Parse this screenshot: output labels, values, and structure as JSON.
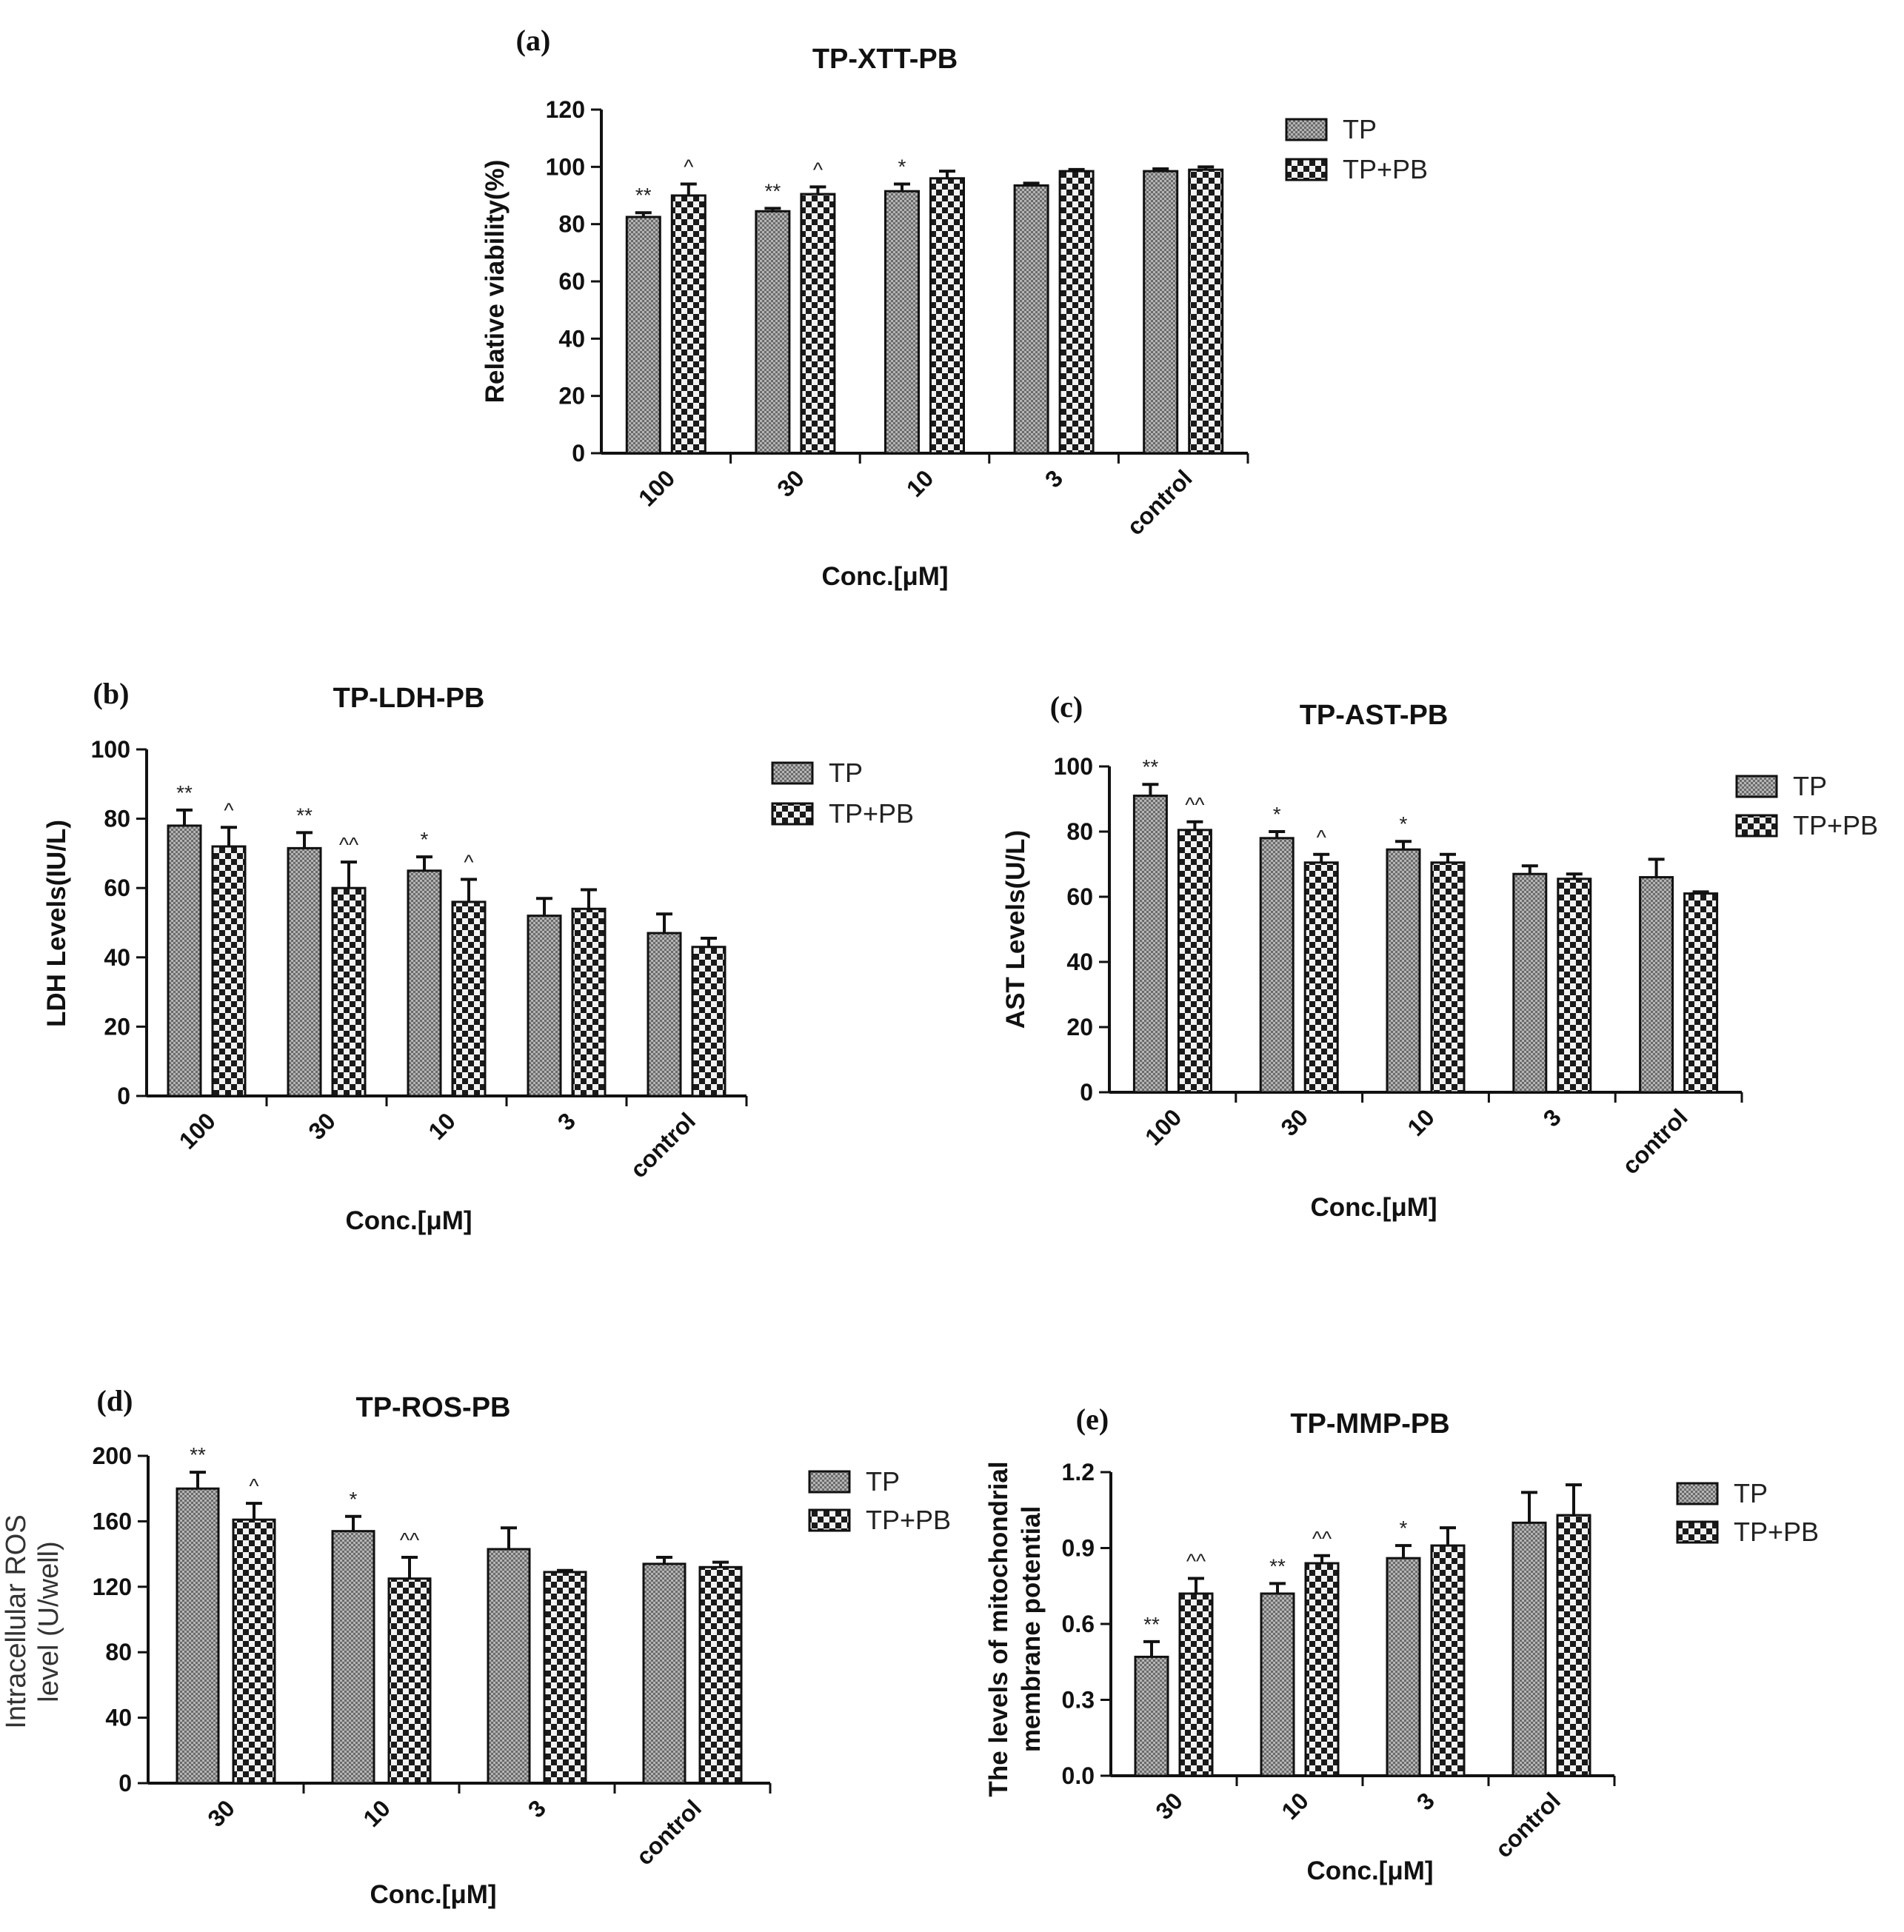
{
  "colors": {
    "ink": "#111111",
    "tp_fill": "#8a8a8a",
    "tppb_dark": "#1a1a1a",
    "tppb_light": "#f2f2f2"
  },
  "chart_data": [
    {
      "id": "a",
      "type": "bar",
      "panel_label": "(a)",
      "title": "TP-XTT-PB",
      "categories": [
        "100",
        "30",
        "10",
        "3",
        "control"
      ],
      "series": [
        {
          "name": "TP",
          "values": [
            82.5,
            84.5,
            91.5,
            93.5,
            98.5
          ],
          "errors": [
            1.5,
            1,
            2.5,
            0.8,
            0.8
          ],
          "annotations": [
            "**",
            "**",
            "*",
            "",
            ""
          ]
        },
        {
          "name": "TP+PB",
          "values": [
            90,
            90.5,
            96,
            98.5,
            99
          ],
          "errors": [
            4,
            2.5,
            2.5,
            0.6,
            1
          ],
          "annotations": [
            "^",
            "^",
            "",
            "",
            ""
          ]
        }
      ],
      "xlabel": "Conc.[μM]",
      "ylabel": "Relative viability(%)",
      "ylim": [
        0,
        120
      ],
      "yticks": [
        0,
        20,
        40,
        60,
        80,
        100,
        120
      ],
      "ytick_labels": [
        "0",
        "20",
        "40",
        "60",
        "80",
        "100",
        "120"
      ],
      "legend": "top-right"
    },
    {
      "id": "b",
      "type": "bar",
      "panel_label": "(b)",
      "title": "TP-LDH-PB",
      "categories": [
        "100",
        "30",
        "10",
        "3",
        "control"
      ],
      "series": [
        {
          "name": "TP",
          "values": [
            78,
            71.5,
            65,
            52,
            47
          ],
          "errors": [
            4.5,
            4.5,
            4,
            5,
            5.5
          ],
          "annotations": [
            "**",
            "**",
            "*",
            "",
            ""
          ]
        },
        {
          "name": "TP+PB",
          "values": [
            72,
            60,
            56,
            54,
            43
          ],
          "errors": [
            5.5,
            7.5,
            6.5,
            5.5,
            2.5
          ],
          "annotations": [
            "^",
            "^^",
            "^",
            "",
            ""
          ]
        }
      ],
      "xlabel": "Conc.[μM]",
      "ylabel": "LDH   Levels(IU/L)",
      "ylim": [
        0,
        100
      ],
      "yticks": [
        0,
        20,
        40,
        60,
        80,
        100
      ],
      "ytick_labels": [
        "0",
        "20",
        "40",
        "60",
        "80",
        "100"
      ],
      "legend": "top-right"
    },
    {
      "id": "c",
      "type": "bar",
      "panel_label": "(c)",
      "title": "TP-AST-PB",
      "categories": [
        "100",
        "30",
        "10",
        "3",
        "control"
      ],
      "series": [
        {
          "name": "TP",
          "values": [
            91,
            78,
            74.5,
            67,
            66
          ],
          "errors": [
            3.5,
            2,
            2.5,
            2.5,
            5.5
          ],
          "annotations": [
            "**",
            "*",
            "*",
            "",
            ""
          ]
        },
        {
          "name": "TP+PB",
          "values": [
            80.5,
            70.5,
            70.5,
            65.5,
            61
          ],
          "errors": [
            2.5,
            2.5,
            2.5,
            1.5,
            0.5
          ],
          "annotations": [
            "^^",
            "^",
            "",
            "",
            ""
          ]
        }
      ],
      "xlabel": "Conc.[μM]",
      "ylabel": "AST Levels(U/L)",
      "ylim": [
        0,
        100
      ],
      "yticks": [
        0,
        20,
        40,
        60,
        80,
        100
      ],
      "ytick_labels": [
        "0",
        "20",
        "40",
        "60",
        "80",
        "100"
      ],
      "legend": "top-right"
    },
    {
      "id": "d",
      "type": "bar",
      "panel_label": "(d)",
      "title": "TP-ROS-PB",
      "categories": [
        "30",
        "10",
        "3",
        "control"
      ],
      "series": [
        {
          "name": "TP",
          "values": [
            180,
            154,
            143,
            134
          ],
          "errors": [
            10,
            9,
            13,
            4
          ],
          "annotations": [
            "**",
            "*",
            "",
            ""
          ]
        },
        {
          "name": "TP+PB",
          "values": [
            161,
            125,
            129,
            132
          ],
          "errors": [
            10,
            13,
            1,
            3
          ],
          "annotations": [
            "^",
            "^^",
            "",
            ""
          ]
        }
      ],
      "xlabel": "Conc.[μM]",
      "ylabel": "Intracellular ROS\nlevel (U/well)",
      "ylim": [
        0,
        200
      ],
      "yticks": [
        0,
        40,
        80,
        120,
        160,
        200
      ],
      "ytick_labels": [
        "0",
        "40",
        "80",
        "120",
        "160",
        "200"
      ],
      "legend": "top-right"
    },
    {
      "id": "e",
      "type": "bar",
      "panel_label": "(e)",
      "title": "TP-MMP-PB",
      "categories": [
        "30",
        "10",
        "3",
        "control"
      ],
      "series": [
        {
          "name": "TP",
          "values": [
            0.47,
            0.72,
            0.86,
            1.0
          ],
          "errors": [
            0.06,
            0.04,
            0.05,
            0.12
          ],
          "annotations": [
            "**",
            "**",
            "*",
            ""
          ]
        },
        {
          "name": "TP+PB",
          "values": [
            0.72,
            0.84,
            0.91,
            1.03
          ],
          "errors": [
            0.06,
            0.03,
            0.07,
            0.12
          ],
          "annotations": [
            "^^",
            "^^",
            "",
            ""
          ]
        }
      ],
      "xlabel": "Conc.[μM]",
      "ylabel": "The levels of mitochondrial\nmembrane potential",
      "ylim": [
        0,
        1.2
      ],
      "yticks": [
        0,
        0.3,
        0.6,
        0.9,
        1.2
      ],
      "ytick_labels": [
        "0.0",
        "0.3",
        "0.6",
        "0.9",
        "1.2"
      ],
      "legend": "top-right"
    }
  ]
}
